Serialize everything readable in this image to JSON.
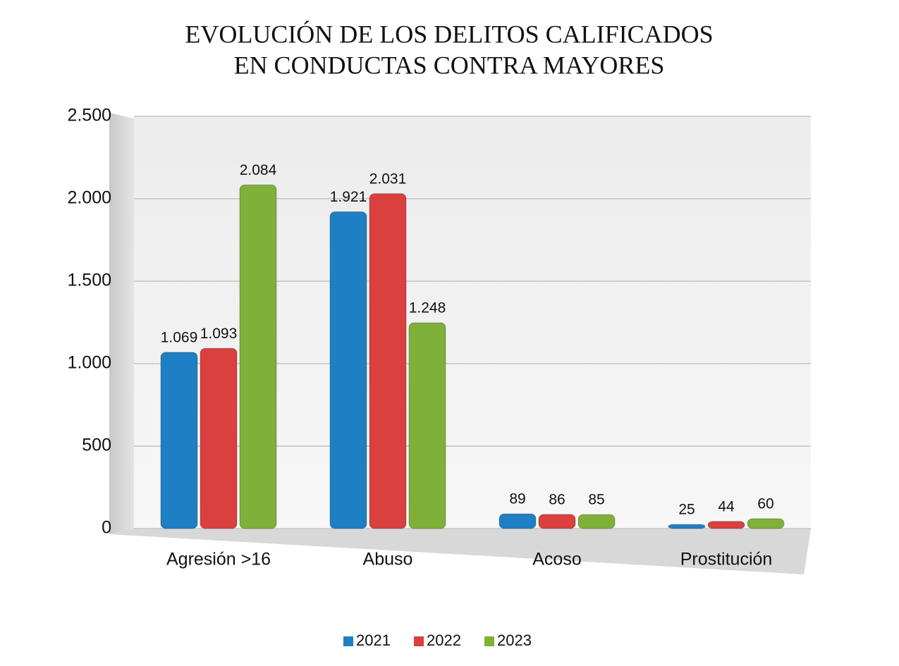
{
  "chart_data": {
    "type": "bar",
    "title": [
      "EVOLUCIÓN DE LOS DELITOS CALIFICADOS",
      "EN CONDUCTAS CONTRA MAYORES"
    ],
    "categories": [
      "Agresión >16",
      "Abuso",
      "Acoso",
      "Prostitución"
    ],
    "series": [
      {
        "name": "2021",
        "color": "#1f7fc4",
        "values": [
          1069,
          1921,
          89,
          25
        ],
        "value_labels": [
          "1.069",
          "1.921",
          "89",
          "25"
        ]
      },
      {
        "name": "2022",
        "color": "#d9403e",
        "values": [
          1093,
          2031,
          86,
          44
        ],
        "value_labels": [
          "1.093",
          "2.031",
          "86",
          "44"
        ]
      },
      {
        "name": "2023",
        "color": "#7fb03a",
        "values": [
          2084,
          1248,
          85,
          60
        ],
        "value_labels": [
          "2.084",
          "1.248",
          "85",
          "60"
        ]
      }
    ],
    "ylim": [
      0,
      2500
    ],
    "yticks": [
      0,
      500,
      {
        "value": 1000,
        "label": "1.000"
      },
      {
        "value": 1500,
        "label": "1.500"
      },
      {
        "value": 2000,
        "label": "2.000"
      },
      {
        "value": 2500,
        "label": "2.500"
      }
    ],
    "grid": true,
    "legend": "bottom"
  }
}
